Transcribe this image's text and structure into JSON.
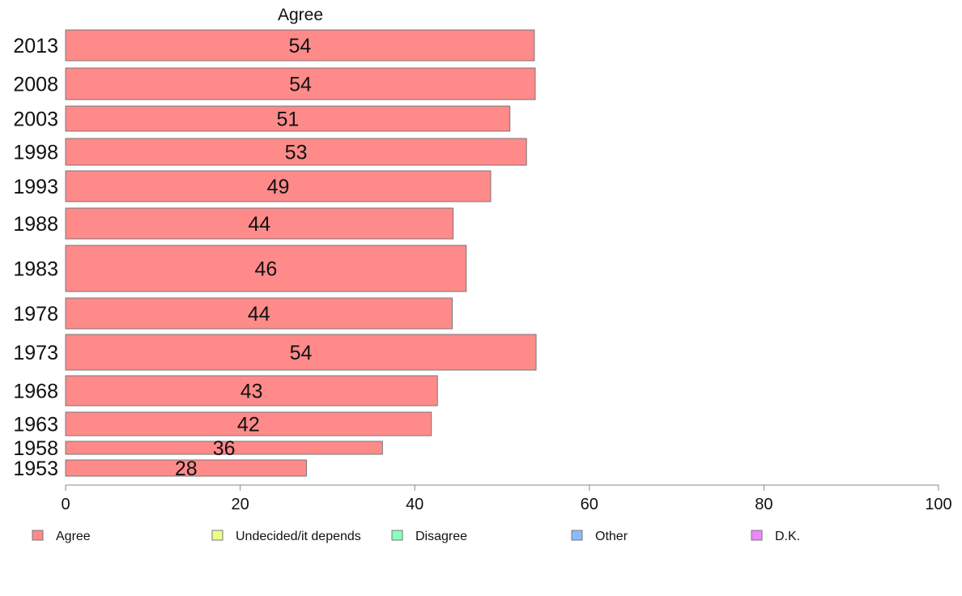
{
  "chart_data": {
    "type": "bar",
    "orientation": "horizontal",
    "title": "Agree",
    "categories": [
      "2013",
      "2008",
      "2003",
      "1998",
      "1993",
      "1988",
      "1983",
      "1978",
      "1973",
      "1968",
      "1963",
      "1958",
      "1953"
    ],
    "series": [
      {
        "name": "Agree",
        "color": "#ff8a8a",
        "values": [
          53.7,
          53.8,
          50.9,
          52.8,
          48.7,
          44.4,
          45.9,
          44.3,
          53.9,
          42.6,
          41.9,
          36.3,
          27.6
        ],
        "labels": [
          "54",
          "54",
          "51",
          "53",
          "49",
          "44",
          "46",
          "44",
          "54",
          "43",
          "42",
          "36",
          "28"
        ]
      }
    ],
    "xlim": [
      0,
      100
    ],
    "xticks": [
      "0",
      "20",
      "40",
      "60",
      "80",
      "100"
    ],
    "grid": false,
    "legend": {
      "placement": "bottom",
      "entries": [
        {
          "label": "Agree",
          "color": "#ff8a8a"
        },
        {
          "label": "Undecided/it depends",
          "color": "#eeff88"
        },
        {
          "label": "Disagree",
          "color": "#88ffbb"
        },
        {
          "label": "Other",
          "color": "#88bbff"
        },
        {
          "label": "D.K.",
          "color": "#ee88ff"
        }
      ]
    }
  }
}
